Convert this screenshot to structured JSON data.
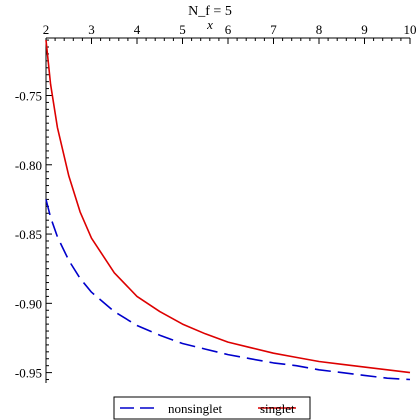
{
  "chart_data": {
    "type": "line",
    "title": "N_f = 5",
    "xlabel": "x",
    "ylabel": "",
    "xlim": [
      2,
      10
    ],
    "ylim": [
      -0.9575,
      -0.7085
    ],
    "x_ticks": [
      2,
      3,
      4,
      5,
      6,
      7,
      8,
      9,
      10
    ],
    "x_tick_labels": [
      "2",
      "3",
      "4",
      "5",
      "6",
      "7",
      "8",
      "9",
      "10"
    ],
    "y_ticks": [
      -0.75,
      -0.8,
      -0.85,
      -0.9,
      -0.95
    ],
    "y_tick_labels": [
      "-0.75",
      "-0.80",
      "-0.85",
      "-0.90",
      "-0.95"
    ],
    "x_axis_position": "top",
    "grid": false,
    "legend_position": "bottom",
    "x": [
      2.0,
      2.1,
      2.25,
      2.5,
      2.75,
      3.0,
      3.5,
      4.0,
      4.5,
      5.0,
      5.5,
      6.0,
      6.5,
      7.0,
      7.5,
      8.0,
      8.5,
      9.0,
      9.5,
      10.0
    ],
    "series": [
      {
        "name": "nonsinglet",
        "color": "#0000cc",
        "dash": "long-dash",
        "values": [
          -0.825,
          -0.838,
          -0.852,
          -0.869,
          -0.882,
          -0.892,
          -0.906,
          -0.916,
          -0.923,
          -0.929,
          -0.933,
          -0.937,
          -0.94,
          -0.943,
          -0.945,
          -0.948,
          -0.95,
          -0.952,
          -0.954,
          -0.955
        ]
      },
      {
        "name": "singlet",
        "color": "#dd0000",
        "dash": "solid",
        "values": [
          -0.71,
          -0.742,
          -0.773,
          -0.808,
          -0.834,
          -0.853,
          -0.878,
          -0.895,
          -0.906,
          -0.915,
          -0.922,
          -0.928,
          -0.932,
          -0.936,
          -0.939,
          -0.942,
          -0.944,
          -0.946,
          -0.948,
          -0.95
        ]
      }
    ]
  }
}
